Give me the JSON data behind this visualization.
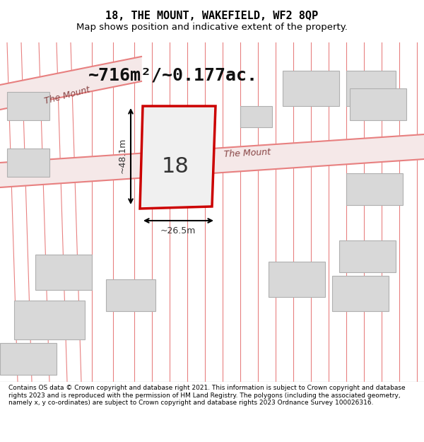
{
  "title_line1": "18, THE MOUNT, WAKEFIELD, WF2 8QP",
  "title_line2": "Map shows position and indicative extent of the property.",
  "area_text": "~716m²/~0.177ac.",
  "label_number": "18",
  "road_label1": "The Mount",
  "road_label2": "The Mount",
  "dim_width": "~26.5m",
  "dim_height": "~48.1m",
  "footer_text": "Contains OS data © Crown copyright and database right 2021. This information is subject to Crown copyright and database rights 2023 and is reproduced with the permission of HM Land Registry. The polygons (including the associated geometry, namely x, y co-ordinates) are subject to Crown copyright and database rights 2023 Ordnance Survey 100026316.",
  "bg_color": "#ffffff",
  "map_bg": "#f9f0f0",
  "plot_fill": "#e8e8e8",
  "plot_stroke": "#cc0000",
  "road_line_color": "#e88080",
  "building_fill": "#d8d8d8",
  "building_stroke": "#b0b0b0",
  "footer_bg": "#ffffff",
  "title_color": "#000000",
  "footer_color": "#000000"
}
